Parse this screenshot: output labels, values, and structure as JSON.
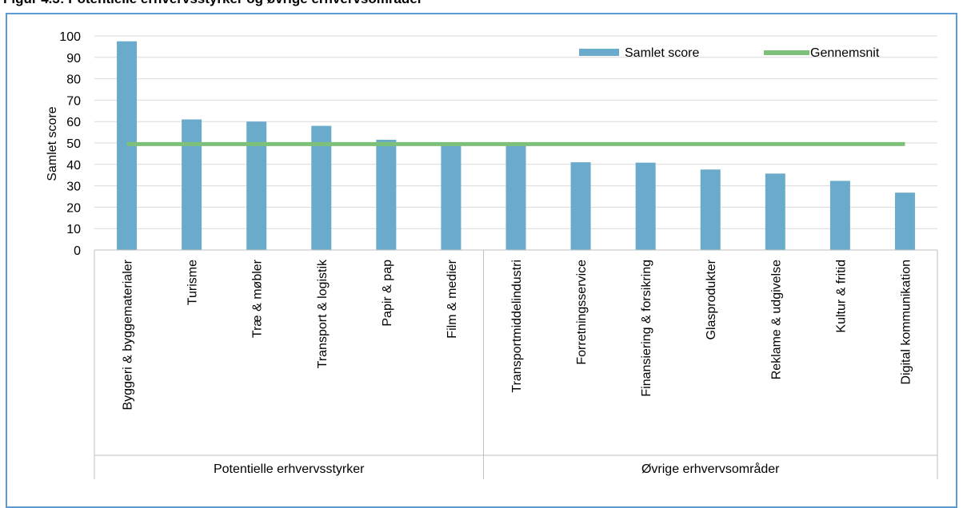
{
  "figure": {
    "title": "Figur 4.3: Potentielle erhvervsstyrker og øvrige erhvervsområder"
  },
  "chart_data": {
    "type": "bar",
    "title": "Figur 4.3: Potentielle erhvervsstyrker og øvrige erhvervsområder",
    "ylabel": "Samlet score",
    "xlabel": "",
    "ylim": [
      0,
      100
    ],
    "yticks": [
      0,
      10,
      20,
      30,
      40,
      50,
      60,
      70,
      80,
      90,
      100
    ],
    "grid": true,
    "legend_position": "top-right",
    "categories": [
      "Byggeri & byggematerialer",
      "Turisme",
      "Træ & møbler",
      "Transport & logistik",
      "Papir & pap",
      "Film & medier",
      "Transportmiddelindustri",
      "Forretningsservice",
      "Finansiering & forsikring",
      "Glasprodukter",
      "Reklame & udgivelse",
      "Kultur & fritid",
      "Digital kommunikation"
    ],
    "groups": [
      {
        "label": "Potentielle erhvervsstyrker",
        "count": 6
      },
      {
        "label": "Øvrige erhvervsområder",
        "count": 7
      }
    ],
    "series": [
      {
        "name": "Samlet score",
        "type": "bar",
        "color": "#6aabcb",
        "values": [
          97.5,
          61,
          60,
          58,
          51.5,
          49.5,
          49.5,
          41,
          40.8,
          37.6,
          35.7,
          32.3,
          26.8
        ]
      },
      {
        "name": "Gennemsnit",
        "type": "line",
        "color": "#7cc07a",
        "values": [
          49.5,
          49.5,
          49.5,
          49.5,
          49.5,
          49.5,
          49.5,
          49.5,
          49.5,
          49.5,
          49.5,
          49.5,
          49.5
        ]
      }
    ]
  }
}
